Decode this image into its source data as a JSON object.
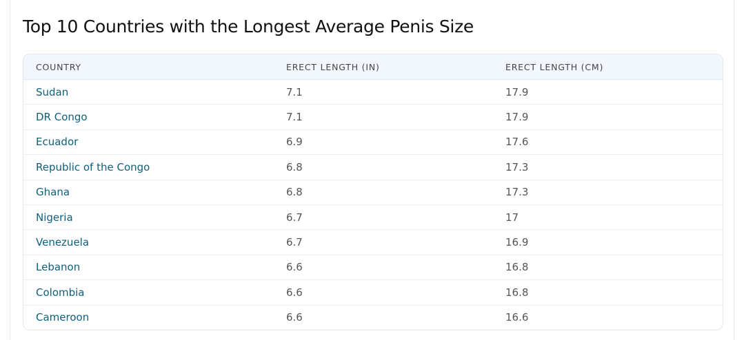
{
  "title": "Top 10 Countries with the Longest Average Penis Size",
  "table": {
    "headers": [
      "COUNTRY",
      "ERECT LENGTH (IN)",
      "ERECT LENGTH (CM)"
    ],
    "rows": [
      [
        "Sudan",
        "7.1",
        "17.9"
      ],
      [
        "DR Congo",
        "7.1",
        "17.9"
      ],
      [
        "Ecuador",
        "6.9",
        "17.6"
      ],
      [
        "Republic of the Congo",
        "6.8",
        "17.3"
      ],
      [
        "Ghana",
        "6.8",
        "17.3"
      ],
      [
        "Nigeria",
        "6.7",
        "17"
      ],
      [
        "Venezuela",
        "6.7",
        "16.9"
      ],
      [
        "Lebanon",
        "6.6",
        "16.8"
      ],
      [
        "Colombia",
        "6.6",
        "16.8"
      ],
      [
        "Cameroon",
        "6.6",
        "16.6"
      ]
    ]
  }
}
